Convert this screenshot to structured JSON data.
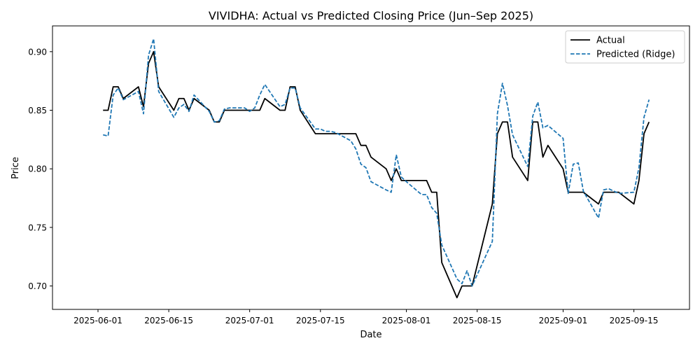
{
  "chart_data": {
    "type": "line",
    "title": "VIVIDHA: Actual vs Predicted Closing Price (Jun–Sep 2025)",
    "xlabel": "Date",
    "ylabel": "Price",
    "xlim": [
      "2025-05-23",
      "2025-09-26"
    ],
    "ylim": [
      0.68,
      0.922
    ],
    "x_ticks": [
      "2025-06-01",
      "2025-06-15",
      "2025-07-01",
      "2025-07-15",
      "2025-08-01",
      "2025-08-15",
      "2025-09-01",
      "2025-09-15"
    ],
    "y_ticks": [
      "0.70",
      "0.75",
      "0.80",
      "0.85",
      "0.90"
    ],
    "grid": false,
    "legend_position": "upper right",
    "series": [
      {
        "name": "Actual",
        "color": "#000000",
        "line_style": "solid",
        "points": [
          [
            "2025-06-02",
            0.85
          ],
          [
            "2025-06-03",
            0.85
          ],
          [
            "2025-06-04",
            0.87
          ],
          [
            "2025-06-05",
            0.87
          ],
          [
            "2025-06-06",
            0.86
          ],
          [
            "2025-06-09",
            0.87
          ],
          [
            "2025-06-10",
            0.853
          ],
          [
            "2025-06-11",
            0.89
          ],
          [
            "2025-06-12",
            0.9
          ],
          [
            "2025-06-13",
            0.87
          ],
          [
            "2025-06-16",
            0.85
          ],
          [
            "2025-06-17",
            0.86
          ],
          [
            "2025-06-18",
            0.86
          ],
          [
            "2025-06-19",
            0.85
          ],
          [
            "2025-06-20",
            0.86
          ],
          [
            "2025-06-23",
            0.85
          ],
          [
            "2025-06-24",
            0.84
          ],
          [
            "2025-06-25",
            0.84
          ],
          [
            "2025-06-26",
            0.85
          ],
          [
            "2025-06-27",
            0.85
          ],
          [
            "2025-06-30",
            0.85
          ],
          [
            "2025-07-01",
            0.85
          ],
          [
            "2025-07-02",
            0.85
          ],
          [
            "2025-07-03",
            0.85
          ],
          [
            "2025-07-04",
            0.86
          ],
          [
            "2025-07-07",
            0.85
          ],
          [
            "2025-07-08",
            0.85
          ],
          [
            "2025-07-09",
            0.87
          ],
          [
            "2025-07-10",
            0.87
          ],
          [
            "2025-07-11",
            0.85
          ],
          [
            "2025-07-14",
            0.83
          ],
          [
            "2025-07-15",
            0.83
          ],
          [
            "2025-07-16",
            0.83
          ],
          [
            "2025-07-17",
            0.83
          ],
          [
            "2025-07-18",
            0.83
          ],
          [
            "2025-07-21",
            0.83
          ],
          [
            "2025-07-22",
            0.83
          ],
          [
            "2025-07-23",
            0.82
          ],
          [
            "2025-07-24",
            0.82
          ],
          [
            "2025-07-25",
            0.81
          ],
          [
            "2025-07-28",
            0.8
          ],
          [
            "2025-07-29",
            0.79
          ],
          [
            "2025-07-30",
            0.8
          ],
          [
            "2025-07-31",
            0.79
          ],
          [
            "2025-08-01",
            0.79
          ],
          [
            "2025-08-04",
            0.79
          ],
          [
            "2025-08-05",
            0.79
          ],
          [
            "2025-08-06",
            0.78
          ],
          [
            "2025-08-07",
            0.78
          ],
          [
            "2025-08-08",
            0.72
          ],
          [
            "2025-08-11",
            0.69
          ],
          [
            "2025-08-12",
            0.7
          ],
          [
            "2025-08-13",
            0.7
          ],
          [
            "2025-08-14",
            0.7
          ],
          [
            "2025-08-18",
            0.77
          ],
          [
            "2025-08-19",
            0.83
          ],
          [
            "2025-08-20",
            0.84
          ],
          [
            "2025-08-21",
            0.84
          ],
          [
            "2025-08-22",
            0.81
          ],
          [
            "2025-08-25",
            0.79
          ],
          [
            "2025-08-26",
            0.84
          ],
          [
            "2025-08-27",
            0.84
          ],
          [
            "2025-08-28",
            0.81
          ],
          [
            "2025-08-29",
            0.82
          ],
          [
            "2025-09-01",
            0.8
          ],
          [
            "2025-09-02",
            0.78
          ],
          [
            "2025-09-03",
            0.78
          ],
          [
            "2025-09-04",
            0.78
          ],
          [
            "2025-09-05",
            0.78
          ],
          [
            "2025-09-08",
            0.77
          ],
          [
            "2025-09-09",
            0.78
          ],
          [
            "2025-09-10",
            0.78
          ],
          [
            "2025-09-11",
            0.78
          ],
          [
            "2025-09-12",
            0.78
          ],
          [
            "2025-09-15",
            0.77
          ],
          [
            "2025-09-16",
            0.79
          ],
          [
            "2025-09-17",
            0.83
          ],
          [
            "2025-09-18",
            0.84
          ]
        ]
      },
      {
        "name": "Predicted (Ridge)",
        "color": "#1f77b4",
        "line_style": "dashed",
        "points": [
          [
            "2025-06-02",
            0.829
          ],
          [
            "2025-06-03",
            0.828
          ],
          [
            "2025-06-04",
            0.863
          ],
          [
            "2025-06-05",
            0.869
          ],
          [
            "2025-06-06",
            0.859
          ],
          [
            "2025-06-09",
            0.866
          ],
          [
            "2025-06-10",
            0.847
          ],
          [
            "2025-06-11",
            0.897
          ],
          [
            "2025-06-12",
            0.911
          ],
          [
            "2025-06-13",
            0.866
          ],
          [
            "2025-06-16",
            0.844
          ],
          [
            "2025-06-17",
            0.852
          ],
          [
            "2025-06-18",
            0.855
          ],
          [
            "2025-06-19",
            0.849
          ],
          [
            "2025-06-20",
            0.863
          ],
          [
            "2025-06-23",
            0.849
          ],
          [
            "2025-06-24",
            0.84
          ],
          [
            "2025-06-25",
            0.841
          ],
          [
            "2025-06-26",
            0.851
          ],
          [
            "2025-06-27",
            0.852
          ],
          [
            "2025-06-30",
            0.852
          ],
          [
            "2025-07-01",
            0.849
          ],
          [
            "2025-07-02",
            0.852
          ],
          [
            "2025-07-03",
            0.863
          ],
          [
            "2025-07-04",
            0.872
          ],
          [
            "2025-07-07",
            0.853
          ],
          [
            "2025-07-08",
            0.855
          ],
          [
            "2025-07-09",
            0.869
          ],
          [
            "2025-07-10",
            0.869
          ],
          [
            "2025-07-11",
            0.852
          ],
          [
            "2025-07-14",
            0.834
          ],
          [
            "2025-07-15",
            0.834
          ],
          [
            "2025-07-16",
            0.832
          ],
          [
            "2025-07-17",
            0.832
          ],
          [
            "2025-07-18",
            0.831
          ],
          [
            "2025-07-21",
            0.824
          ],
          [
            "2025-07-22",
            0.817
          ],
          [
            "2025-07-23",
            0.804
          ],
          [
            "2025-07-24",
            0.801
          ],
          [
            "2025-07-25",
            0.789
          ],
          [
            "2025-07-28",
            0.782
          ],
          [
            "2025-07-29",
            0.78
          ],
          [
            "2025-07-30",
            0.812
          ],
          [
            "2025-07-31",
            0.793
          ],
          [
            "2025-08-01",
            0.789
          ],
          [
            "2025-08-04",
            0.778
          ],
          [
            "2025-08-05",
            0.778
          ],
          [
            "2025-08-06",
            0.767
          ],
          [
            "2025-08-07",
            0.762
          ],
          [
            "2025-08-08",
            0.735
          ],
          [
            "2025-08-11",
            0.706
          ],
          [
            "2025-08-12",
            0.702
          ],
          [
            "2025-08-13",
            0.713
          ],
          [
            "2025-08-14",
            0.7
          ],
          [
            "2025-08-18",
            0.738
          ],
          [
            "2025-08-19",
            0.847
          ],
          [
            "2025-08-20",
            0.873
          ],
          [
            "2025-08-21",
            0.854
          ],
          [
            "2025-08-22",
            0.829
          ],
          [
            "2025-08-25",
            0.802
          ],
          [
            "2025-08-26",
            0.845
          ],
          [
            "2025-08-27",
            0.857
          ],
          [
            "2025-08-28",
            0.835
          ],
          [
            "2025-08-29",
            0.837
          ],
          [
            "2025-09-01",
            0.826
          ],
          [
            "2025-09-02",
            0.779
          ],
          [
            "2025-09-03",
            0.804
          ],
          [
            "2025-09-04",
            0.805
          ],
          [
            "2025-09-05",
            0.781
          ],
          [
            "2025-09-08",
            0.758
          ],
          [
            "2025-09-09",
            0.782
          ],
          [
            "2025-09-10",
            0.783
          ],
          [
            "2025-09-11",
            0.781
          ],
          [
            "2025-09-12",
            0.779
          ],
          [
            "2025-09-15",
            0.78
          ],
          [
            "2025-09-16",
            0.801
          ],
          [
            "2025-09-17",
            0.844
          ],
          [
            "2025-09-18",
            0.859
          ]
        ]
      }
    ]
  }
}
